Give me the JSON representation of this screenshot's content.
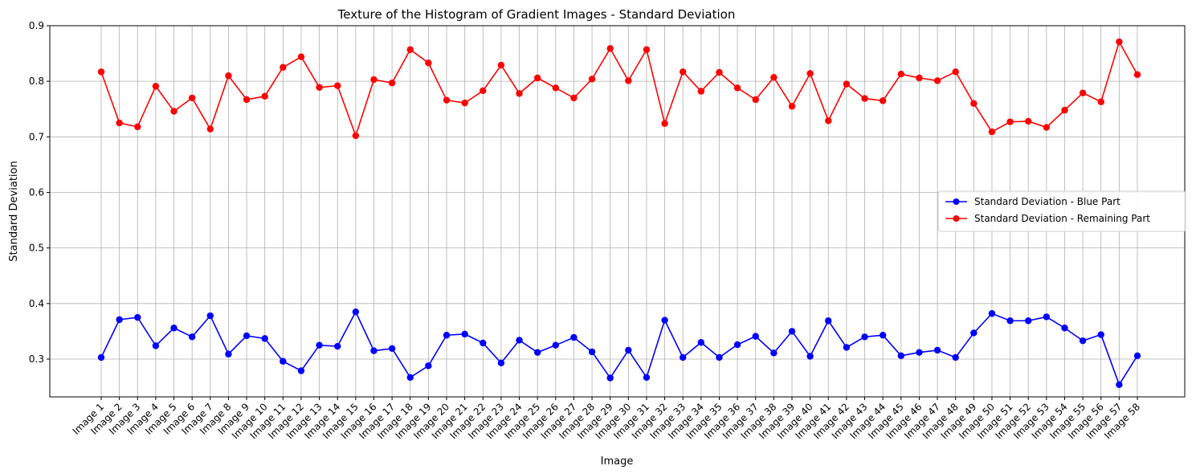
{
  "chart_data": {
    "type": "line",
    "title": "Texture of the Histogram of Gradient Images  - Standard Deviation",
    "xlabel": "Image",
    "ylabel": "Standard Deviation",
    "ylim": [
      0.232,
      0.9
    ],
    "yticks": [
      0.3,
      0.4,
      0.5,
      0.6,
      0.7,
      0.8,
      0.9
    ],
    "ytick_labels": [
      "0.3",
      "0.4",
      "0.5",
      "0.6",
      "0.7",
      "0.8",
      "0.9"
    ],
    "grid": true,
    "legend_position": "center-right",
    "categories": [
      "Image 1",
      "Image 2",
      "Image 3",
      "Image 4",
      "Image 5",
      "Image 6",
      "Image 7",
      "Image 8",
      "Image 9",
      "Image 10",
      "Image 11",
      "Image 12",
      "Image 13",
      "Image 14",
      "Image 15",
      "Image 16",
      "Image 17",
      "Image 18",
      "Image 19",
      "Image 20",
      "Image 21",
      "Image 22",
      "Image 23",
      "Image 24",
      "Image 25",
      "Image 26",
      "Image 27",
      "Image 28",
      "Image 29",
      "Image 30",
      "Image 31",
      "Image 32",
      "Image 33",
      "Image 34",
      "Image 35",
      "Image 36",
      "Image 37",
      "Image 38",
      "Image 39",
      "Image 40",
      "Image 41",
      "Image 42",
      "Image 43",
      "Image 44",
      "Image 45",
      "Image 46",
      "Image 47",
      "Image 48",
      "Image 49",
      "Image 50",
      "Image 51",
      "Image 52",
      "Image 53",
      "Image 54",
      "Image 55",
      "Image 56",
      "Image 57",
      "Image 58"
    ],
    "series": [
      {
        "name": "Standard Deviation - Blue Part",
        "color": "#0000ff",
        "values": [
          0.303,
          0.371,
          0.375,
          0.324,
          0.356,
          0.34,
          0.378,
          0.309,
          0.342,
          0.337,
          0.296,
          0.279,
          0.325,
          0.323,
          0.385,
          0.315,
          0.319,
          0.267,
          0.288,
          0.343,
          0.345,
          0.329,
          0.293,
          0.334,
          0.312,
          0.325,
          0.339,
          0.313,
          0.266,
          0.316,
          0.267,
          0.37,
          0.303,
          0.33,
          0.303,
          0.326,
          0.341,
          0.311,
          0.35,
          0.305,
          0.369,
          0.321,
          0.34,
          0.343,
          0.306,
          0.312,
          0.316,
          0.303,
          0.347,
          0.382,
          0.369,
          0.369,
          0.376,
          0.356,
          0.333,
          0.344,
          0.254,
          0.306
        ]
      },
      {
        "name": "Standard Deviation - Remaining Part",
        "color": "#ff0000",
        "values": [
          0.817,
          0.725,
          0.718,
          0.791,
          0.746,
          0.77,
          0.714,
          0.81,
          0.767,
          0.773,
          0.825,
          0.844,
          0.789,
          0.792,
          0.702,
          0.803,
          0.797,
          0.857,
          0.833,
          0.766,
          0.761,
          0.783,
          0.829,
          0.778,
          0.806,
          0.788,
          0.77,
          0.804,
          0.859,
          0.801,
          0.857,
          0.724,
          0.817,
          0.782,
          0.816,
          0.788,
          0.767,
          0.807,
          0.755,
          0.814,
          0.729,
          0.795,
          0.769,
          0.765,
          0.813,
          0.806,
          0.801,
          0.817,
          0.76,
          0.709,
          0.727,
          0.728,
          0.717,
          0.748,
          0.779,
          0.763,
          0.871,
          0.812
        ]
      }
    ]
  }
}
